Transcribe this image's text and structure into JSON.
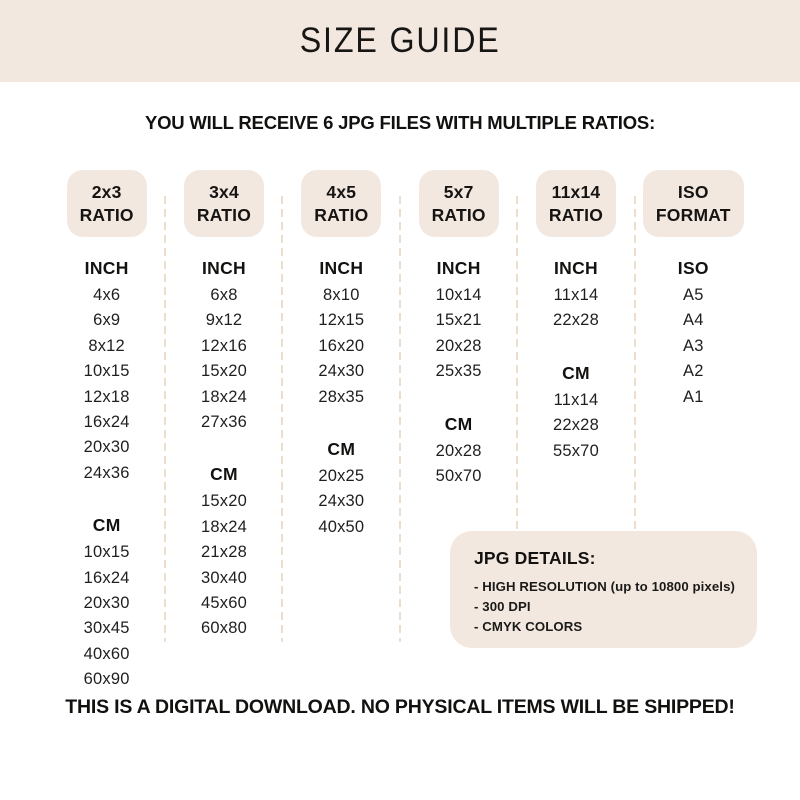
{
  "page": {
    "title": "SIZE GUIDE",
    "subtitle": "YOU WILL RECEIVE 6 JPG FILES WITH MULTIPLE RATIOS:",
    "footer": "THIS IS A DIGITAL DOWNLOAD. NO PHYSICAL ITEMS WILL BE SHIPPED!"
  },
  "colors": {
    "beige": "#f2e8df",
    "dash": "#ecddcc",
    "text": "#1b1a18",
    "background": "#ffffff"
  },
  "columns": [
    {
      "header_line1": "2x3",
      "header_line2": "RATIO",
      "sections": [
        {
          "label": "INCH",
          "sizes": [
            "4x6",
            "6x9",
            "8x12",
            "10x15",
            "12x18",
            "16x24",
            "20x30",
            "24x36"
          ]
        },
        {
          "label": "CM",
          "sizes": [
            "10x15",
            "16x24",
            "20x30",
            "30x45",
            "40x60",
            "60x90"
          ]
        }
      ]
    },
    {
      "header_line1": "3x4",
      "header_line2": "RATIO",
      "sections": [
        {
          "label": "INCH",
          "sizes": [
            "6x8",
            "9x12",
            "12x16",
            "15x20",
            "18x24",
            "27x36"
          ]
        },
        {
          "label": "CM",
          "sizes": [
            "15x20",
            "18x24",
            "21x28",
            "30x40",
            "45x60",
            "60x80"
          ]
        }
      ]
    },
    {
      "header_line1": "4x5",
      "header_line2": "RATIO",
      "sections": [
        {
          "label": "INCH",
          "sizes": [
            "8x10",
            "12x15",
            "16x20",
            "24x30",
            "28x35"
          ]
        },
        {
          "label": "CM",
          "sizes": [
            "20x25",
            "24x30",
            "40x50"
          ]
        }
      ]
    },
    {
      "header_line1": "5x7",
      "header_line2": "RATIO",
      "sections": [
        {
          "label": "INCH",
          "sizes": [
            "10x14",
            "15x21",
            "20x28",
            "25x35"
          ]
        },
        {
          "label": "CM",
          "sizes": [
            "20x28",
            "50x70"
          ]
        }
      ]
    },
    {
      "header_line1": "11x14",
      "header_line2": "RATIO",
      "sections": [
        {
          "label": "INCH",
          "sizes": [
            "11x14",
            "22x28"
          ]
        },
        {
          "label": "CM",
          "sizes": [
            "11x14",
            "22x28",
            "55x70"
          ]
        }
      ]
    },
    {
      "header_line1": "ISO",
      "header_line2": "FORMAT",
      "sections": [
        {
          "label": "ISO",
          "sizes": [
            "A5",
            "A4",
            "A3",
            "A2",
            "A1"
          ]
        }
      ]
    }
  ],
  "jpg_details": {
    "title": "JPG DETAILS:",
    "items": [
      "- HIGH RESOLUTION (up to 10800 pixels)",
      "- 300 DPI",
      "- CMYK COLORS"
    ]
  }
}
